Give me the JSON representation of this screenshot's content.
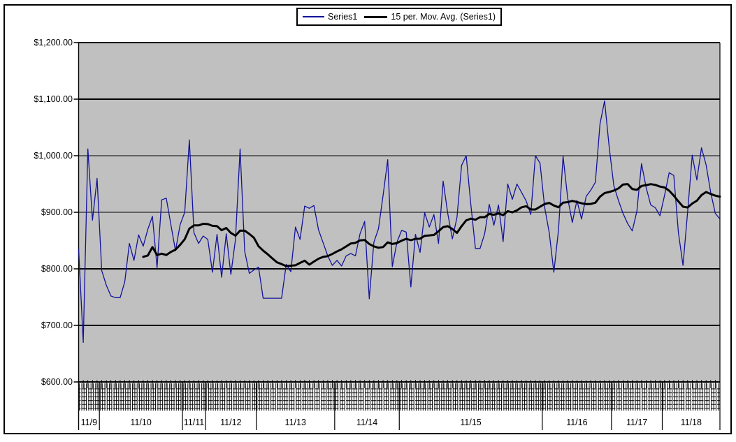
{
  "legend": {
    "items": [
      {
        "label": "Series1",
        "color": "#12129b",
        "thickness": 1
      },
      {
        "label": "15 per. Mov. Avg. (Series1)",
        "color": "#000000",
        "thickness": 3
      }
    ]
  },
  "y_axis": {
    "tick_labels": [
      "$1,200.00",
      "$1,100.00",
      "$1,000.00",
      "$900.00",
      "$800.00",
      "$700.00",
      "$600.00"
    ]
  },
  "x_axis": {
    "group_labels": [
      "11/9",
      "11/10",
      "11/11",
      "11/12",
      "11/13",
      "11/14",
      "11/15",
      "11/16",
      "11/17",
      "11/18"
    ]
  },
  "chart_data": {
    "type": "line",
    "title": "",
    "xlabel": "",
    "ylabel": "",
    "ylim": [
      600,
      1200
    ],
    "y_tick_step": 100,
    "y_tick_labels": [
      "$1,200.00",
      "$1,100.00",
      "$1,000.00",
      "$900.00",
      "$800.00",
      "$700.00",
      "$600.00"
    ],
    "grid": true,
    "plot_bg": "#c0c0c0",
    "grid_color": "#000000",
    "legend_position": "top-center",
    "x_groups": [
      {
        "label": "11/9",
        "points": 5
      },
      {
        "label": "11/10",
        "points": 18
      },
      {
        "label": "11/11",
        "points": 5
      },
      {
        "label": "11/12",
        "points": 11
      },
      {
        "label": "11/13",
        "points": 17
      },
      {
        "label": "11/14",
        "points": 14
      },
      {
        "label": "11/15",
        "points": 31
      },
      {
        "label": "11/16",
        "points": 15
      },
      {
        "label": "11/17",
        "points": 11
      },
      {
        "label": "11/18",
        "points": 13
      }
    ],
    "series": [
      {
        "name": "Series1",
        "color": "#12129b",
        "values": [
          835,
          670,
          1012,
          886,
          960,
          797,
          771,
          752,
          749,
          749,
          777,
          845,
          815,
          860,
          840,
          870,
          893,
          802,
          922,
          925,
          878,
          832,
          878,
          900,
          1028,
          864,
          845,
          858,
          852,
          794,
          861,
          785,
          862,
          790,
          852,
          1012,
          831,
          792,
          798,
          803,
          748,
          748,
          748,
          748,
          748,
          808,
          795,
          874,
          852,
          911,
          907,
          912,
          869,
          846,
          823,
          806,
          815,
          805,
          823,
          827,
          823,
          862,
          884,
          747,
          847,
          871,
          930,
          993,
          804,
          847,
          868,
          865,
          768,
          861,
          829,
          899,
          874,
          896,
          845,
          955,
          898,
          853,
          891,
          983,
          1000,
          914,
          836,
          836,
          862,
          914,
          877,
          913,
          848,
          950,
          923,
          950,
          935,
          920,
          896,
          1000,
          987,
          909,
          864,
          794,
          868,
          999,
          925,
          882,
          921,
          888,
          928,
          939,
          953,
          1056,
          1097,
          1015,
          947,
          921,
          898,
          880,
          867,
          902,
          986,
          944,
          913,
          908,
          894,
          930,
          970,
          965,
          864,
          806,
          901,
          1001,
          957,
          1014,
          984,
          935,
          898,
          888
        ]
      },
      {
        "name": "15 per. Mov. Avg. (Series1)",
        "color": "#000000",
        "derived": "trailing_moving_average",
        "window": 15
      }
    ]
  }
}
